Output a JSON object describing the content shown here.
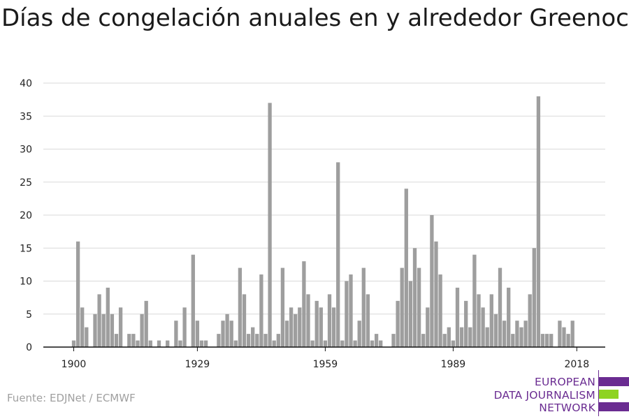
{
  "chart_data": {
    "type": "bar",
    "title": "Días de congelación anuales en y alrededor Greenock",
    "xlabel": "",
    "ylabel": "",
    "ylim": [
      0,
      40
    ],
    "yticks": [
      "0",
      "5",
      "10",
      "15",
      "20",
      "25",
      "30",
      "35",
      "40"
    ],
    "xticks": [
      "1900",
      "1929",
      "1959",
      "1989",
      "2018"
    ],
    "grid": true,
    "bar_color": "#9e9e9e",
    "x_start_year": 1900,
    "values": [
      1,
      16,
      6,
      3,
      0,
      5,
      8,
      5,
      9,
      5,
      2,
      6,
      0,
      2,
      2,
      1,
      5,
      7,
      1,
      0,
      1,
      0,
      1,
      0,
      4,
      1,
      6,
      0,
      14,
      4,
      1,
      1,
      0,
      0,
      2,
      4,
      5,
      4,
      1,
      12,
      8,
      2,
      3,
      2,
      11,
      2,
      37,
      1,
      2,
      12,
      4,
      6,
      5,
      6,
      13,
      8,
      1,
      7,
      6,
      1,
      8,
      6,
      28,
      1,
      10,
      11,
      1,
      4,
      12,
      8,
      1,
      2,
      1,
      0,
      0,
      2,
      7,
      12,
      24,
      10,
      15,
      12,
      2,
      6,
      20,
      16,
      11,
      2,
      3,
      1,
      9,
      3,
      7,
      3,
      14,
      8,
      6,
      3,
      8,
      5,
      12,
      4,
      9,
      2,
      4,
      3,
      4,
      8,
      15,
      38,
      2,
      2,
      2,
      0,
      4,
      3,
      2,
      4
    ]
  },
  "source": "Fuente: EDJNet / ECMWF",
  "logo": {
    "line1": "EUROPEAN",
    "line2": "DATA JOURNALISM",
    "line3": "NETWORK",
    "purple": "#6a2c91",
    "green": "#8ed322"
  }
}
